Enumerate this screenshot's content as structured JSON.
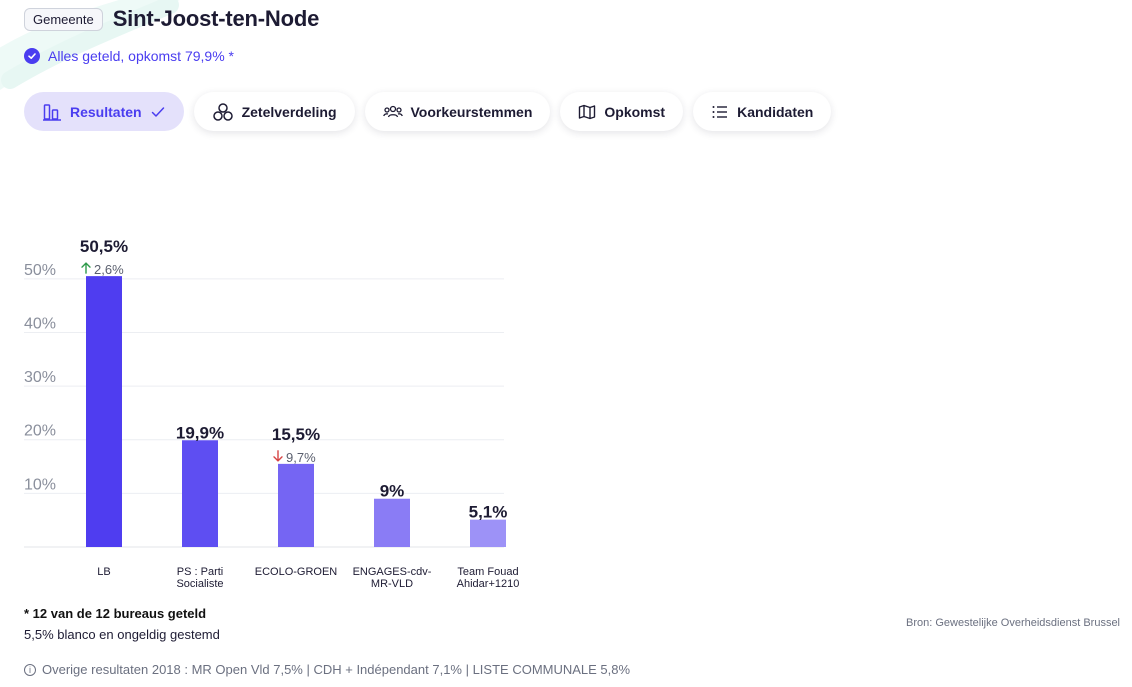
{
  "header": {
    "badge": "Gemeente",
    "title": "Sint-Joost-ten-Node"
  },
  "status": {
    "text": "Alles geteld, opkomst 79,9% *"
  },
  "tabs": [
    {
      "label": "Resultaten",
      "icon": "bar-chart-icon",
      "active": true
    },
    {
      "label": "Zetelverdeling",
      "icon": "seats-icon",
      "active": false
    },
    {
      "label": "Voorkeurstemmen",
      "icon": "people-icon",
      "active": false
    },
    {
      "label": "Opkomst",
      "icon": "map-icon",
      "active": false
    },
    {
      "label": "Kandidaten",
      "icon": "list-icon",
      "active": false
    }
  ],
  "chart_data": {
    "type": "bar",
    "categories": [
      "LB",
      "PS : Parti Socialiste",
      "ECOLO-GROEN",
      "ENGAGES-cdv-MR-VLD",
      "Team Fouad Ahidar+1210"
    ],
    "category_lines": [
      [
        "LB"
      ],
      [
        "PS : Parti",
        "Socialiste"
      ],
      [
        "ECOLO-GROEN"
      ],
      [
        "ENGAGES-cdv-",
        "MR-VLD"
      ],
      [
        "Team Fouad",
        "Ahidar+1210"
      ]
    ],
    "values": [
      50.5,
      19.9,
      15.5,
      9,
      5.1
    ],
    "value_labels": [
      "50,5%",
      "19,9%",
      "15,5%",
      "9%",
      "5,1%"
    ],
    "changes": [
      {
        "direction": "up",
        "text": "2,6%"
      },
      null,
      {
        "direction": "down",
        "text": "9,7%"
      },
      null,
      null
    ],
    "yticks": [
      10,
      20,
      30,
      40,
      50
    ],
    "ytick_labels": [
      "10%",
      "20%",
      "30%",
      "40%",
      "50%"
    ],
    "ylim": [
      0,
      55
    ],
    "colors": [
      "#4f3df0",
      "#5e4ef2",
      "#7565f3",
      "#8a7cf5",
      "#9d92f7"
    ],
    "title": "",
    "xlabel": "",
    "ylabel": ""
  },
  "footer": {
    "bureaus": "* 12 van de 12 bureaus geteld",
    "blanco": "5,5% blanco en ongeldig gestemd",
    "source": "Bron: Gewestelijke Overheidsdienst Brussel",
    "other_results": "Overige resultaten 2018 : MR Open Vld 7,5% | CDH + Indépendant 7,1% | LISTE COMMUNALE 5,8%"
  },
  "colors": {
    "accent": "#4a3df0",
    "up": "#2e9a4a",
    "down": "#d64545"
  }
}
